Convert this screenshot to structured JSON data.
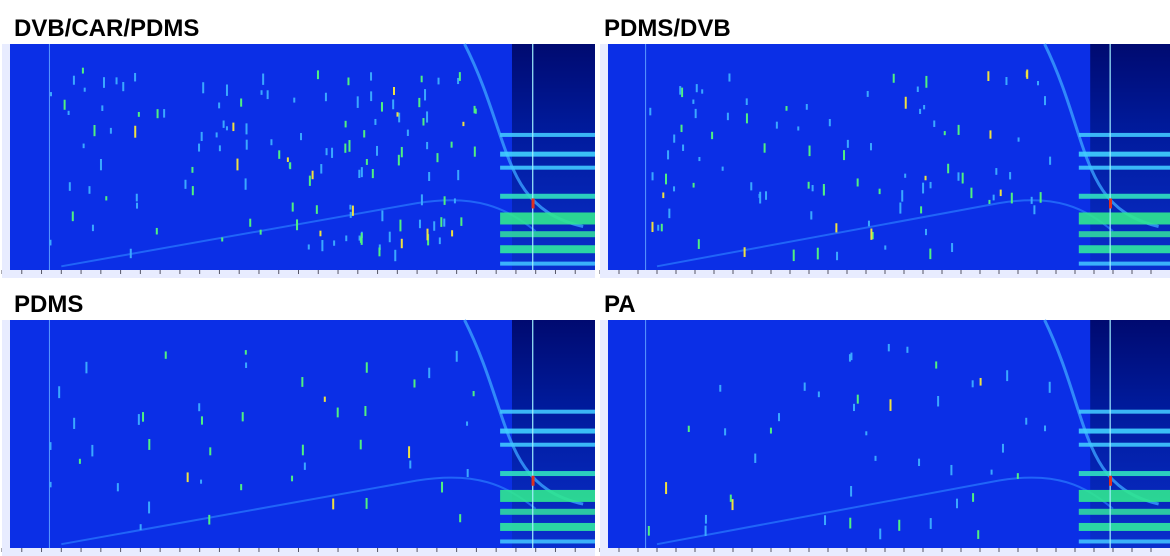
{
  "panels": [
    {
      "title": "DVB/CAR/PDMS"
    },
    {
      "title": "PDMS/DVB"
    },
    {
      "title": "PDMS"
    },
    {
      "title": "PA"
    }
  ]
}
